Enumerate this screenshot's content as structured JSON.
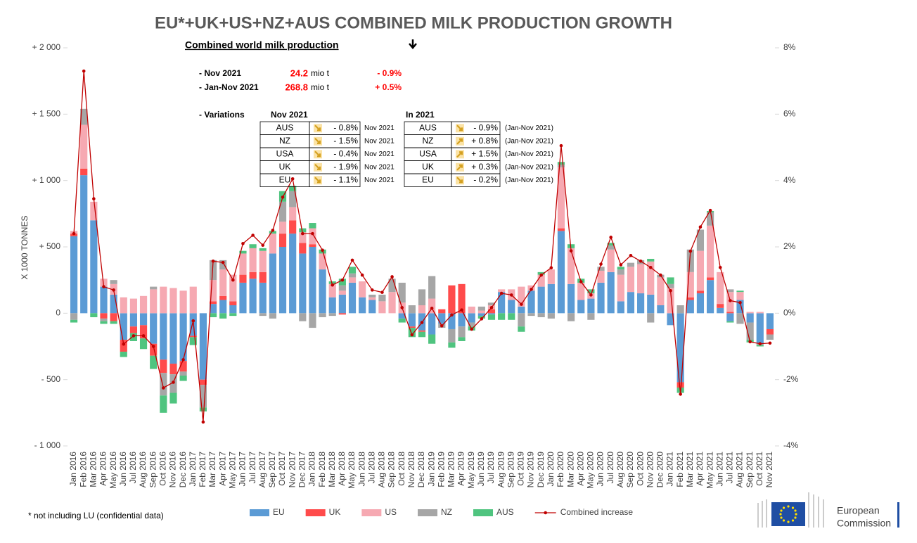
{
  "chart_data": {
    "type": "bar",
    "title": "EU*+UK+US+NZ+AUS COMBINED MILK PRODUCTION GROWTH",
    "y_label": "X 1000 TONNES",
    "note": "* not including LU (confidential data)",
    "stacked": true,
    "categories": [
      "Jan 2016",
      "Feb 2016",
      "Mar 2016",
      "Apr 2016",
      "May 2016",
      "Jun 2016",
      "Jul 2016",
      "Aug 2016",
      "Sep 2016",
      "Oct 2016",
      "Nov 2016",
      "Dec 2016",
      "Jan 2017",
      "Feb 2017",
      "Mar 2017",
      "Apr 2017",
      "May 2017",
      "Jun 2017",
      "Jul 2017",
      "Aug 2017",
      "Sep 2017",
      "Oct 2017",
      "Nov 2017",
      "Dec 2017",
      "Jan 2018",
      "Feb 2018",
      "Mar 2018",
      "Apr 2018",
      "May 2018",
      "Jun 2018",
      "Jul 2018",
      "Aug 2018",
      "Sep 2018",
      "Oct 2018",
      "Nov 2018",
      "Dec 2018",
      "Jan 2019",
      "Feb 2019",
      "Mar 2019",
      "Apr 2019",
      "May 2019",
      "Jun 2019",
      "Jul 2019",
      "Aug 2019",
      "Sep 2019",
      "Oct 2019",
      "Nov 2019",
      "Dec 2019",
      "Jan 2020",
      "Feb 2020",
      "Mar 2020",
      "Apr 2020",
      "May 2020",
      "Jun 2020",
      "Jul 2020",
      "Aug 2020",
      "Sep 2020",
      "Oct 2020",
      "Nov 2020",
      "Dec 2020",
      "Jan 2021",
      "Feb 2021",
      "Mar 2021",
      "Apr 2021",
      "May 2021",
      "Jun 2021",
      "Jul 2021",
      "Aug 2021",
      "Sep 2021",
      "Oct 2021",
      "Nov 2021"
    ],
    "series": [
      {
        "name": "EU",
        "color": "#5b9bd5",
        "values": [
          580,
          1040,
          700,
          200,
          140,
          -200,
          -100,
          -90,
          -230,
          -350,
          -380,
          -360,
          -170,
          -500,
          70,
          100,
          60,
          230,
          260,
          230,
          450,
          500,
          600,
          450,
          500,
          330,
          120,
          140,
          230,
          120,
          100,
          0,
          0,
          -40,
          -100,
          -130,
          -160,
          -80,
          -120,
          -100,
          -70,
          -20,
          -10,
          160,
          100,
          50,
          170,
          200,
          220,
          620,
          220,
          100,
          110,
          230,
          310,
          90,
          160,
          150,
          140,
          60,
          -90,
          -520,
          100,
          150,
          250,
          40,
          -60,
          100,
          -70,
          -230,
          -120
        ]
      },
      {
        "name": "UK",
        "color": "#ff4b4b",
        "values": [
          20,
          50,
          0,
          -40,
          -60,
          -90,
          -50,
          -100,
          -90,
          -100,
          -80,
          -80,
          -10,
          -40,
          20,
          30,
          30,
          60,
          50,
          80,
          0,
          100,
          100,
          80,
          20,
          0,
          0,
          -10,
          0,
          0,
          0,
          0,
          0,
          0,
          -10,
          -10,
          0,
          30,
          210,
          220,
          0,
          0,
          30,
          0,
          0,
          0,
          0,
          0,
          0,
          20,
          0,
          0,
          0,
          0,
          0,
          0,
          0,
          0,
          0,
          0,
          0,
          -40,
          20,
          20,
          20,
          30,
          10,
          0,
          0,
          0,
          -40
        ]
      },
      {
        "name": "US",
        "color": "#f6a9b2",
        "values": [
          20,
          330,
          140,
          60,
          80,
          120,
          110,
          130,
          180,
          200,
          190,
          170,
          200,
          0,
          160,
          200,
          200,
          160,
          180,
          160,
          150,
          90,
          100,
          80,
          120,
          120,
          100,
          30,
          40,
          120,
          20,
          90,
          160,
          80,
          0,
          60,
          110,
          0,
          0,
          0,
          50,
          20,
          30,
          20,
          80,
          150,
          40,
          90,
          110,
          460,
          270,
          130,
          40,
          90,
          170,
          200,
          190,
          220,
          250,
          210,
          190,
          0,
          190,
          300,
          390,
          240,
          150,
          60,
          10,
          10,
          0
        ]
      },
      {
        "name": "NZ",
        "color": "#a6a6a6",
        "values": [
          -50,
          120,
          0,
          -20,
          30,
          0,
          0,
          0,
          20,
          -170,
          -140,
          -30,
          0,
          -170,
          150,
          70,
          0,
          0,
          0,
          -20,
          -40,
          150,
          120,
          -60,
          -110,
          -30,
          -20,
          40,
          30,
          0,
          20,
          50,
          100,
          150,
          60,
          120,
          170,
          -30,
          -100,
          -80,
          -30,
          30,
          20,
          0,
          0,
          -100,
          -20,
          -30,
          -40,
          20,
          -60,
          0,
          -50,
          30,
          30,
          40,
          30,
          30,
          -70,
          20,
          30,
          60,
          170,
          160,
          100,
          0,
          20,
          -80,
          -130,
          -10,
          -40
        ]
      },
      {
        "name": "AUS",
        "color": "#4fc47f",
        "values": [
          -20,
          0,
          -30,
          -20,
          -20,
          -40,
          -60,
          -80,
          -100,
          -130,
          -80,
          -40,
          -60,
          -30,
          -30,
          -40,
          -20,
          20,
          30,
          20,
          20,
          80,
          40,
          30,
          40,
          30,
          20,
          50,
          50,
          0,
          0,
          0,
          0,
          -30,
          -70,
          -40,
          -70,
          0,
          -40,
          -30,
          -30,
          -20,
          -40,
          -50,
          -50,
          -40,
          0,
          20,
          0,
          20,
          30,
          30,
          30,
          0,
          20,
          20,
          0,
          0,
          20,
          0,
          50,
          -40,
          0,
          0,
          10,
          0,
          -10,
          10,
          -20,
          -10,
          0
        ]
      },
      {
        "name": "Combined increase",
        "color": "#c00000",
        "type": "line",
        "axis": "y2",
        "values": [
          2.4,
          7.3,
          3.45,
          0.8,
          0.7,
          -0.93,
          -0.68,
          -0.68,
          -1.0,
          -2.25,
          -2.08,
          -1.4,
          -0.23,
          -3.28,
          1.57,
          1.53,
          1.0,
          2.1,
          2.35,
          2.05,
          2.5,
          3.5,
          4.05,
          2.4,
          2.4,
          1.9,
          0.85,
          1.0,
          1.6,
          1.15,
          0.7,
          0.63,
          1.1,
          0.17,
          -0.65,
          -0.28,
          0.15,
          -0.38,
          -0.05,
          0.1,
          -0.48,
          -0.17,
          0.17,
          0.6,
          0.55,
          0.27,
          0.72,
          1.15,
          1.37,
          5.05,
          1.88,
          0.95,
          0.55,
          1.48,
          2.29,
          1.46,
          1.74,
          1.57,
          1.38,
          1.15,
          0.68,
          -2.44,
          1.87,
          2.6,
          3.1,
          1.38,
          0.38,
          0.32,
          -0.86,
          -0.92,
          -0.9
        ]
      }
    ],
    "ylim": [
      -1000,
      2000
    ],
    "yticks": [
      {
        "value": -1000,
        "label": "- 1 000"
      },
      {
        "value": -500,
        "label": "- 500"
      },
      0,
      {
        "value": 500,
        "label": "+ 500"
      },
      {
        "value": 1000,
        "label": "+ 1 000"
      },
      {
        "value": 1500,
        "label": "+ 1 500"
      },
      {
        "value": 2000,
        "label": "+ 2 000"
      }
    ],
    "y2lim": [
      -4,
      8
    ],
    "y2ticks": [
      {
        "value": -4,
        "label": "-4%"
      },
      {
        "value": -2,
        "label": "-2%"
      },
      {
        "value": 0,
        "label": "0%"
      },
      {
        "value": 2,
        "label": "2%"
      },
      {
        "value": 4,
        "label": "4%"
      },
      {
        "value": 6,
        "label": "6%"
      },
      {
        "value": 8,
        "label": "8%"
      }
    ],
    "grid": false,
    "legend": "bottom"
  },
  "summary": {
    "title": "Combined world milk production",
    "rows": [
      {
        "label": "- Nov 2021",
        "value": "24.2",
        "unit": "mio t",
        "change": "- 0.9%"
      },
      {
        "label": "- Jan-Nov 2021",
        "value": "268.8",
        "unit": "mio t",
        "change": "+ 0.5%"
      }
    ],
    "variations_label": "- Variations",
    "month_header": "Nov 2021",
    "year_header": "In 2021",
    "month_table": [
      {
        "country": "AUS",
        "change": "- 0.8%",
        "period": "Nov 2021",
        "trend": "down"
      },
      {
        "country": "NZ",
        "change": "- 1.5%",
        "period": "Nov 2021",
        "trend": "down"
      },
      {
        "country": "USA",
        "change": "- 0.4%",
        "period": "Nov 2021",
        "trend": "down"
      },
      {
        "country": "UK",
        "change": "- 1.9%",
        "period": "Nov 2021",
        "trend": "down"
      },
      {
        "country": "EU",
        "change": "- 1.1%",
        "period": "Nov 2021",
        "trend": "down"
      }
    ],
    "year_table": [
      {
        "country": "AUS",
        "change": "- 0.9%",
        "period": "(Jan-Nov 2021)",
        "trend": "down"
      },
      {
        "country": "NZ",
        "change": "+ 0.8%",
        "period": "(Jan-Nov 2021)",
        "trend": "up"
      },
      {
        "country": "USA",
        "change": "+ 1.5%",
        "period": "(Jan-Nov 2021)",
        "trend": "up"
      },
      {
        "country": "UK",
        "change": "+ 0.3%",
        "period": "(Jan-Nov 2021)",
        "trend": "up"
      },
      {
        "country": "EU",
        "change": "- 0.2%",
        "period": "(Jan-Nov 2021)",
        "trend": "down"
      }
    ]
  },
  "logo": {
    "lines": [
      "European",
      "Commission"
    ]
  }
}
